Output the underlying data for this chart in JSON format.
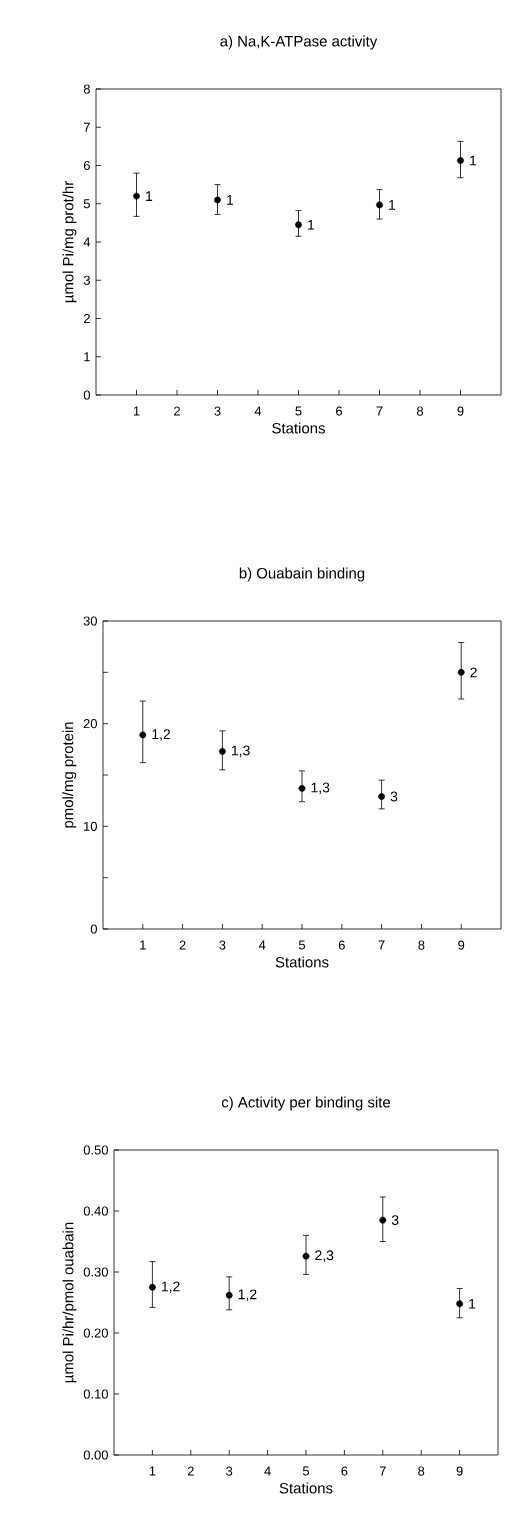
{
  "chart_data": [
    {
      "type": "scatter",
      "title": "a) Na,K-ATPase activity",
      "xlabel": "Stations",
      "ylabel": "µmol Pi/mg prot/hr",
      "x": [
        1,
        3,
        5,
        7,
        9
      ],
      "values": [
        5.2,
        5.1,
        4.45,
        4.97,
        6.13
      ],
      "errors": [
        [
          4.67,
          5.8
        ],
        [
          4.72,
          5.5
        ],
        [
          4.15,
          4.82
        ],
        [
          4.6,
          5.37
        ],
        [
          5.68,
          6.63
        ]
      ],
      "xlim": [
        0,
        10
      ],
      "xticks": [
        1,
        2,
        3,
        4,
        5,
        6,
        7,
        8,
        9
      ],
      "ylim": [
        0,
        8
      ],
      "yticks": [
        0,
        1,
        2,
        3,
        4,
        5,
        6,
        7,
        8
      ],
      "annotations": [
        {
          "text": "1",
          "x": 1,
          "y": 5.2
        },
        {
          "text": "1",
          "x": 3,
          "y": 5.1
        },
        {
          "text": "1",
          "x": 5,
          "y": 4.45
        },
        {
          "text": "1",
          "x": 7,
          "y": 4.97
        },
        {
          "text": "1",
          "x": 9,
          "y": 6.13
        }
      ]
    },
    {
      "type": "scatter",
      "title": "b) Ouabain binding",
      "xlabel": "Stations",
      "ylabel": "pmol/mg protein",
      "x": [
        1,
        3,
        5,
        7,
        9
      ],
      "values": [
        18.9,
        17.3,
        13.7,
        12.9,
        25.0
      ],
      "errors": [
        [
          16.2,
          22.2
        ],
        [
          15.5,
          19.3
        ],
        [
          12.4,
          15.4
        ],
        [
          11.7,
          14.5
        ],
        [
          22.4,
          27.9
        ]
      ],
      "xlim": [
        0,
        10
      ],
      "xticks": [
        1,
        2,
        3,
        4,
        5,
        6,
        7,
        8,
        9
      ],
      "ylim": [
        0,
        30
      ],
      "yticks": [
        0,
        {
          "value": 5,
          "label": null
        },
        10,
        {
          "value": 15,
          "label": null
        },
        20,
        {
          "value": 25,
          "label": null
        },
        30
      ],
      "annotations": [
        {
          "text": "1,2",
          "x": 1,
          "y": 18.9
        },
        {
          "text": "1,3",
          "x": 3,
          "y": 17.3
        },
        {
          "text": "1,3",
          "x": 5,
          "y": 13.7
        },
        {
          "text": "3",
          "x": 7,
          "y": 12.9
        },
        {
          "text": "2",
          "x": 9,
          "y": 25.0
        }
      ]
    },
    {
      "type": "scatter",
      "title": "c) Activity per binding site",
      "xlabel": "Stations",
      "ylabel": "µmol Pi/hr/pmol ouabain",
      "x": [
        1,
        3,
        5,
        7,
        9
      ],
      "values": [
        0.275,
        0.262,
        0.326,
        0.385,
        0.248
      ],
      "errors": [
        [
          0.242,
          0.317
        ],
        [
          0.238,
          0.292
        ],
        [
          0.296,
          0.36
        ],
        [
          0.35,
          0.423
        ],
        [
          0.225,
          0.273
        ]
      ],
      "xlim": [
        0,
        10
      ],
      "xticks": [
        1,
        2,
        3,
        4,
        5,
        6,
        7,
        8,
        9
      ],
      "ylim": [
        0,
        0.5
      ],
      "yticks": [
        {
          "value": 0,
          "label": "0.00"
        },
        {
          "value": 0.1,
          "label": "0.10"
        },
        {
          "value": 0.2,
          "label": "0.20"
        },
        {
          "value": 0.3,
          "label": "0.30"
        },
        {
          "value": 0.4,
          "label": "0.40"
        },
        {
          "value": 0.5,
          "label": "0.50"
        }
      ],
      "annotations": [
        {
          "text": "1,2",
          "x": 1,
          "y": 0.275
        },
        {
          "text": "1,2",
          "x": 3,
          "y": 0.262
        },
        {
          "text": "2,3",
          "x": 5,
          "y": 0.326
        },
        {
          "text": "3",
          "x": 7,
          "y": 0.385
        },
        {
          "text": "1",
          "x": 9,
          "y": 0.248
        }
      ]
    }
  ]
}
